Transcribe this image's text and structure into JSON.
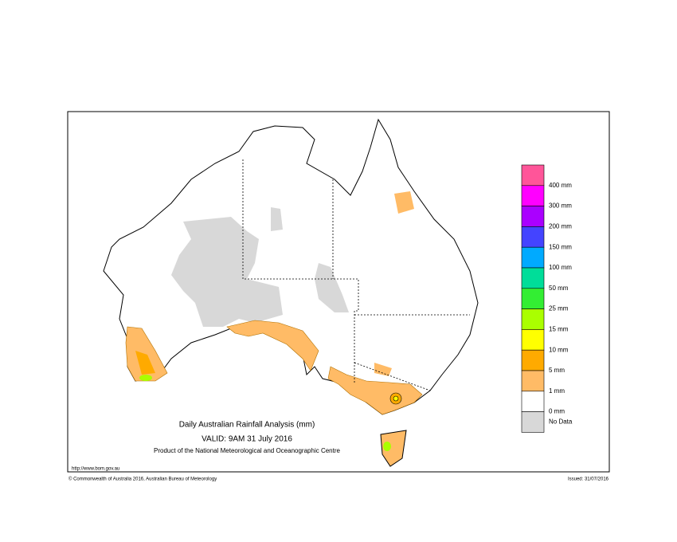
{
  "map": {
    "title": "Daily Australian Rainfall Analysis (mm)",
    "valid": "VALID: 9AM 31 July 2016",
    "product": "Product of the National Meteorological and Oceanographic Centre",
    "url": "http://www.bom.gov.au",
    "copyright": "© Commonwealth of Australia 2016, Australian Bureau of Meteorology",
    "issued": "Issued: 31/07/2016",
    "legend": {
      "labels": [
        "400 mm",
        "300 mm",
        "200 mm",
        "150 mm",
        "100 mm",
        "50 mm",
        "25 mm",
        "15 mm",
        "10 mm",
        "5 mm",
        "1 mm",
        "0 mm",
        "No Data"
      ],
      "colors": [
        "#ff5599",
        "#ff00ff",
        "#aa00ff",
        "#4444ff",
        "#00aaff",
        "#00dd99",
        "#33ee33",
        "#aaff00",
        "#ffff00",
        "#ffaa00",
        "#ffbb66",
        "#ffffff",
        "#d8d8d8"
      ]
    }
  }
}
